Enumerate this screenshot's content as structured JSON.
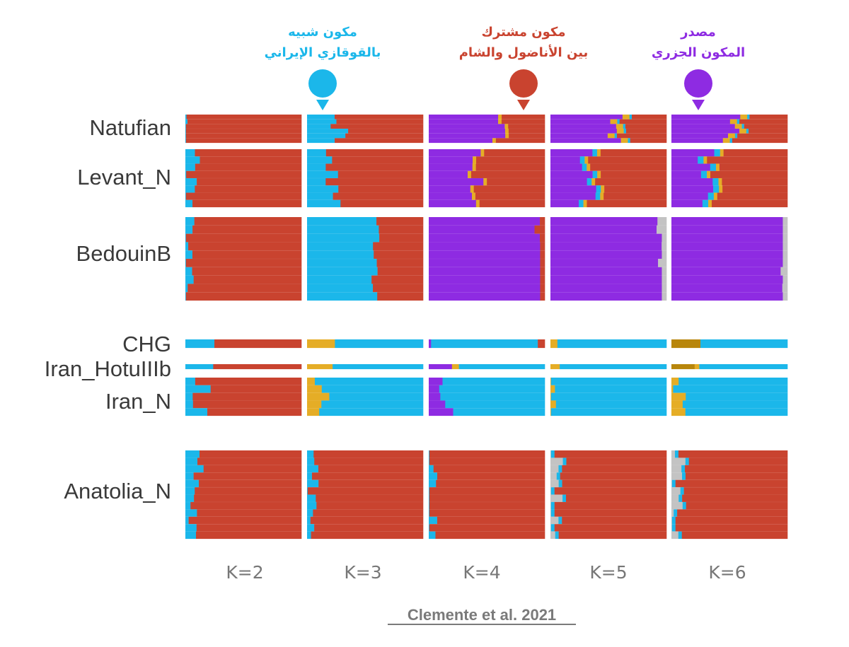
{
  "chart_data": {
    "type": "admixture",
    "title": "",
    "citation": "Clemente et al. 2021",
    "colors": {
      "levant": "#c9432f",
      "iran": "#1bb7ea",
      "yellow": "#e5ad26",
      "purple": "#8e2be2",
      "grey": "#c3c3c3",
      "brown": "#b8860b"
    },
    "k_values": [
      "K=2",
      "K=3",
      "K=4",
      "K=5",
      "K=6"
    ],
    "annotations": [
      {
        "line1": "مكون شبيه",
        "line2": "بالقوقازي الإيراني",
        "color": "#1bb7ea",
        "k": "K=3"
      },
      {
        "line1": "مكون مشترك",
        "line2": "بين الأناضول والشام",
        "color": "#c9432f",
        "k": "K=4"
      },
      {
        "line1": "مصدر",
        "line2": "المكون الجزري",
        "color": "#8e2be2",
        "k": "K=6"
      }
    ],
    "populations": [
      {
        "name": "Natufian",
        "n": 6,
        "components": {
          "K=2": [
            [
              "iran",
              0.02
            ],
            [
              "levant",
              0.98
            ]
          ],
          "K=3": [
            [
              "iran",
              0.28
            ],
            [
              "levant",
              0.72
            ]
          ],
          "K=4": [
            [
              "purple",
              0.62
            ],
            [
              "yellow",
              0.03
            ],
            [
              "levant",
              0.35
            ]
          ],
          "K=5": [
            [
              "purple",
              0.55
            ],
            [
              "yellow",
              0.06
            ],
            [
              "iran",
              0.02
            ],
            [
              "levant",
              0.37
            ]
          ],
          "K=6": [
            [
              "purple",
              0.52
            ],
            [
              "yellow",
              0.06
            ],
            [
              "iran",
              0.02
            ],
            [
              "levant",
              0.4
            ]
          ]
        }
      },
      {
        "name": "Levant_N",
        "n": 8,
        "components": {
          "K=2": [
            [
              "iran",
              0.06
            ],
            [
              "levant",
              0.94
            ]
          ],
          "K=3": [
            [
              "iran",
              0.24
            ],
            [
              "levant",
              0.76
            ]
          ],
          "K=4": [
            [
              "purple",
              0.4
            ],
            [
              "yellow",
              0.03
            ],
            [
              "levant",
              0.57
            ]
          ],
          "K=5": [
            [
              "purple",
              0.32
            ],
            [
              "iran",
              0.04
            ],
            [
              "yellow",
              0.03
            ],
            [
              "levant",
              0.61
            ]
          ],
          "K=6": [
            [
              "purple",
              0.3
            ],
            [
              "iran",
              0.05
            ],
            [
              "yellow",
              0.03
            ],
            [
              "levant",
              0.62
            ]
          ]
        }
      },
      {
        "name": "BedouinB",
        "n": 10,
        "components": {
          "K=2": [
            [
              "iran",
              0.005
            ],
            [
              "levant",
              0.995
            ]
          ],
          "K=3": [
            [
              "iran",
              0.63
            ],
            [
              "levant",
              0.37
            ]
          ],
          "K=4": [
            [
              "purple",
              0.98
            ],
            [
              "levant",
              0.02
            ]
          ],
          "K=5": [
            [
              "purple",
              0.99
            ],
            [
              "grey",
              0.01
            ]
          ],
          "K=6": [
            [
              "purple",
              0.99
            ],
            [
              "grey",
              0.01
            ]
          ]
        }
      },
      {
        "name": "CHG",
        "n": 1,
        "components": {
          "K=2": [
            [
              "iran",
              0.25
            ],
            [
              "levant",
              0.75
            ]
          ],
          "K=3": [
            [
              "yellow",
              0.24
            ],
            [
              "iran",
              0.76
            ]
          ],
          "K=4": [
            [
              "purple",
              0.02
            ],
            [
              "iran",
              0.92
            ],
            [
              "levant",
              0.06
            ]
          ],
          "K=5": [
            [
              "yellow",
              0.06
            ],
            [
              "iran",
              0.94
            ]
          ],
          "K=6": [
            [
              "brown",
              0.25
            ],
            [
              "iran",
              0.75
            ]
          ]
        }
      },
      {
        "name": "Iran_HotuIIIb",
        "n": 1,
        "components": {
          "K=2": [
            [
              "iran",
              0.24
            ],
            [
              "levant",
              0.76
            ]
          ],
          "K=3": [
            [
              "yellow",
              0.22
            ],
            [
              "iran",
              0.78
            ]
          ],
          "K=4": [
            [
              "purple",
              0.2
            ],
            [
              "yellow",
              0.06
            ],
            [
              "iran",
              0.74
            ]
          ],
          "K=5": [
            [
              "yellow",
              0.08
            ],
            [
              "iran",
              0.92
            ]
          ],
          "K=6": [
            [
              "brown",
              0.2
            ],
            [
              "yellow",
              0.04
            ],
            [
              "iran",
              0.76
            ]
          ]
        }
      },
      {
        "name": "Iran_N",
        "n": 5,
        "components": {
          "K=2": [
            [
              "iran",
              0.14
            ],
            [
              "levant",
              0.86
            ]
          ],
          "K=3": [
            [
              "yellow",
              0.14
            ],
            [
              "iran",
              0.86
            ]
          ],
          "K=4": [
            [
              "purple",
              0.16
            ],
            [
              "iran",
              0.84
            ]
          ],
          "K=5": [
            [
              "yellow",
              0.02
            ],
            [
              "iran",
              0.98
            ]
          ],
          "K=6": [
            [
              "yellow",
              0.05
            ],
            [
              "iran",
              0.95
            ]
          ]
        }
      },
      {
        "name": "Anatolia_N",
        "n": 12,
        "components": {
          "K=2": [
            [
              "iran",
              0.1
            ],
            [
              "levant",
              0.9
            ]
          ],
          "K=3": [
            [
              "iran",
              0.03
            ],
            [
              "levant",
              0.97
            ]
          ],
          "K=4": [
            [
              "iran",
              0.03
            ],
            [
              "levant",
              0.97
            ]
          ],
          "K=5": [
            [
              "grey",
              0.05
            ],
            [
              "iran",
              0.03
            ],
            [
              "levant",
              0.92
            ]
          ],
          "K=6": [
            [
              "grey",
              0.06
            ],
            [
              "iran",
              0.03
            ],
            [
              "levant",
              0.91
            ]
          ]
        }
      }
    ]
  }
}
